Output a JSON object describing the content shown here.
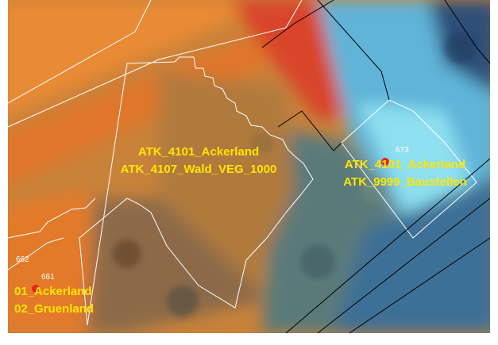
{
  "map": {
    "labels": [
      {
        "lines": [
          "ATK_4101_Ackerland",
          "ATK_4107_Wald_VEG_1000"
        ]
      },
      {
        "lines": [
          "ATK_4101_Ackerland",
          "ATK_9999_Baustellen"
        ]
      },
      {
        "lines": [
          "01_Ackerland",
          "02_Gruenland"
        ]
      }
    ],
    "parcel_numbers": [
      "673",
      "662",
      "661"
    ]
  }
}
